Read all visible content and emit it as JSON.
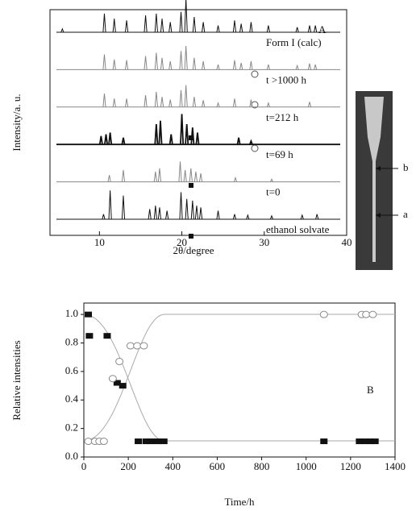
{
  "chart_data": [
    {
      "type": "stick",
      "label": "A",
      "xlabel": "2θ/degree",
      "ylabel": "Intensity/a. u.",
      "xlim": [
        4,
        40
      ],
      "xticks": [
        10,
        20,
        30,
        40
      ],
      "series": [
        {
          "name": "Form I (calc)",
          "color": "#111111",
          "x": [
            5.5,
            10.6,
            11.8,
            13.3,
            15.6,
            16.9,
            17.6,
            18.6,
            19.9,
            20.5,
            21.5,
            22.6,
            24.4,
            26.4,
            27.2,
            28.4,
            30.5,
            34.0,
            35.5,
            36.2
          ],
          "values": [
            10,
            55,
            40,
            35,
            50,
            55,
            40,
            30,
            60,
            100,
            45,
            30,
            20,
            35,
            25,
            30,
            20,
            15,
            20,
            20
          ]
        },
        {
          "name": "t >1000 h",
          "color": "#888888",
          "x": [
            10.6,
            11.8,
            13.3,
            15.6,
            16.9,
            17.6,
            18.6,
            19.9,
            20.5,
            21.5,
            22.6,
            24.4,
            26.4,
            27.2,
            28.4,
            30.5,
            34.0,
            35.5,
            36.2
          ],
          "values": [
            45,
            30,
            28,
            40,
            50,
            35,
            25,
            55,
            70,
            35,
            25,
            15,
            28,
            20,
            25,
            15,
            12,
            18,
            15
          ]
        },
        {
          "name": "t=212 h",
          "color": "#888888",
          "x": [
            10.6,
            11.8,
            13.3,
            15.6,
            16.9,
            17.6,
            18.6,
            19.9,
            20.5,
            21.5,
            22.6,
            24.4,
            26.4,
            28.4,
            30.5,
            35.5
          ],
          "values": [
            40,
            25,
            25,
            35,
            45,
            30,
            22,
            50,
            65,
            30,
            20,
            12,
            25,
            22,
            12,
            15
          ]
        },
        {
          "name": "t=69 h",
          "color": "#111111",
          "x": [
            10.2,
            10.8,
            11.3,
            12.9,
            16.9,
            17.4,
            18.7,
            20.0,
            20.6,
            21.3,
            21.9,
            26.9,
            28.4
          ],
          "values": [
            25,
            30,
            35,
            20,
            60,
            70,
            30,
            90,
            60,
            50,
            35,
            20,
            10
          ]
        },
        {
          "name": "t=0",
          "color": "#888888",
          "x": [
            11.2,
            12.9,
            16.8,
            17.3,
            19.8,
            20.4,
            21.1,
            21.7,
            22.3,
            26.5,
            30.9
          ],
          "values": [
            20,
            35,
            30,
            40,
            60,
            35,
            40,
            30,
            25,
            12,
            8
          ]
        },
        {
          "name": "ethanol solvate",
          "color": "#111111",
          "x": [
            10.5,
            11.3,
            12.9,
            16.1,
            16.8,
            17.3,
            18.2,
            19.9,
            20.6,
            21.3,
            21.8,
            22.3,
            24.4,
            26.4,
            28.0,
            30.9,
            34.6,
            36.4
          ],
          "values": [
            15,
            85,
            70,
            30,
            40,
            35,
            25,
            80,
            60,
            55,
            40,
            35,
            25,
            15,
            12,
            10,
            12,
            15
          ]
        }
      ],
      "photo_labels": [
        "b",
        "a"
      ]
    },
    {
      "type": "scatter",
      "label": "B",
      "xlabel": "Time/h",
      "ylabel": "Relative intensities",
      "xlim": [
        0,
        1400
      ],
      "ylim": [
        0,
        1.08
      ],
      "xticks": [
        0,
        200,
        400,
        600,
        800,
        1000,
        1200,
        1400
      ],
      "yticks": [
        {
          "value": 0,
          "label": "0.0"
        },
        0.2,
        0.4,
        0.6,
        0.8,
        {
          "value": 1,
          "label": "1.0"
        }
      ],
      "series": [
        {
          "marker": "square",
          "color": "#111111",
          "x": [
            20,
            25,
            105,
            150,
            175,
            245,
            280,
            300,
            330,
            360,
            1080,
            1240,
            1265,
            1290,
            1310
          ],
          "values": [
            1.0,
            0.85,
            0.85,
            0.52,
            0.5,
            0.11,
            0.11,
            0.11,
            0.11,
            0.11,
            0.11,
            0.11,
            0.11,
            0.11,
            0.11
          ]
        },
        {
          "marker": "circle",
          "color": "#888888",
          "x": [
            20,
            50,
            70,
            90,
            130,
            160,
            210,
            240,
            270,
            1080,
            1250,
            1270,
            1300
          ],
          "values": [
            0.11,
            0.11,
            0.11,
            0.11,
            0.55,
            0.67,
            0.78,
            0.78,
            0.78,
            1.0,
            1.0,
            1.0,
            1.0
          ]
        }
      ]
    }
  ]
}
